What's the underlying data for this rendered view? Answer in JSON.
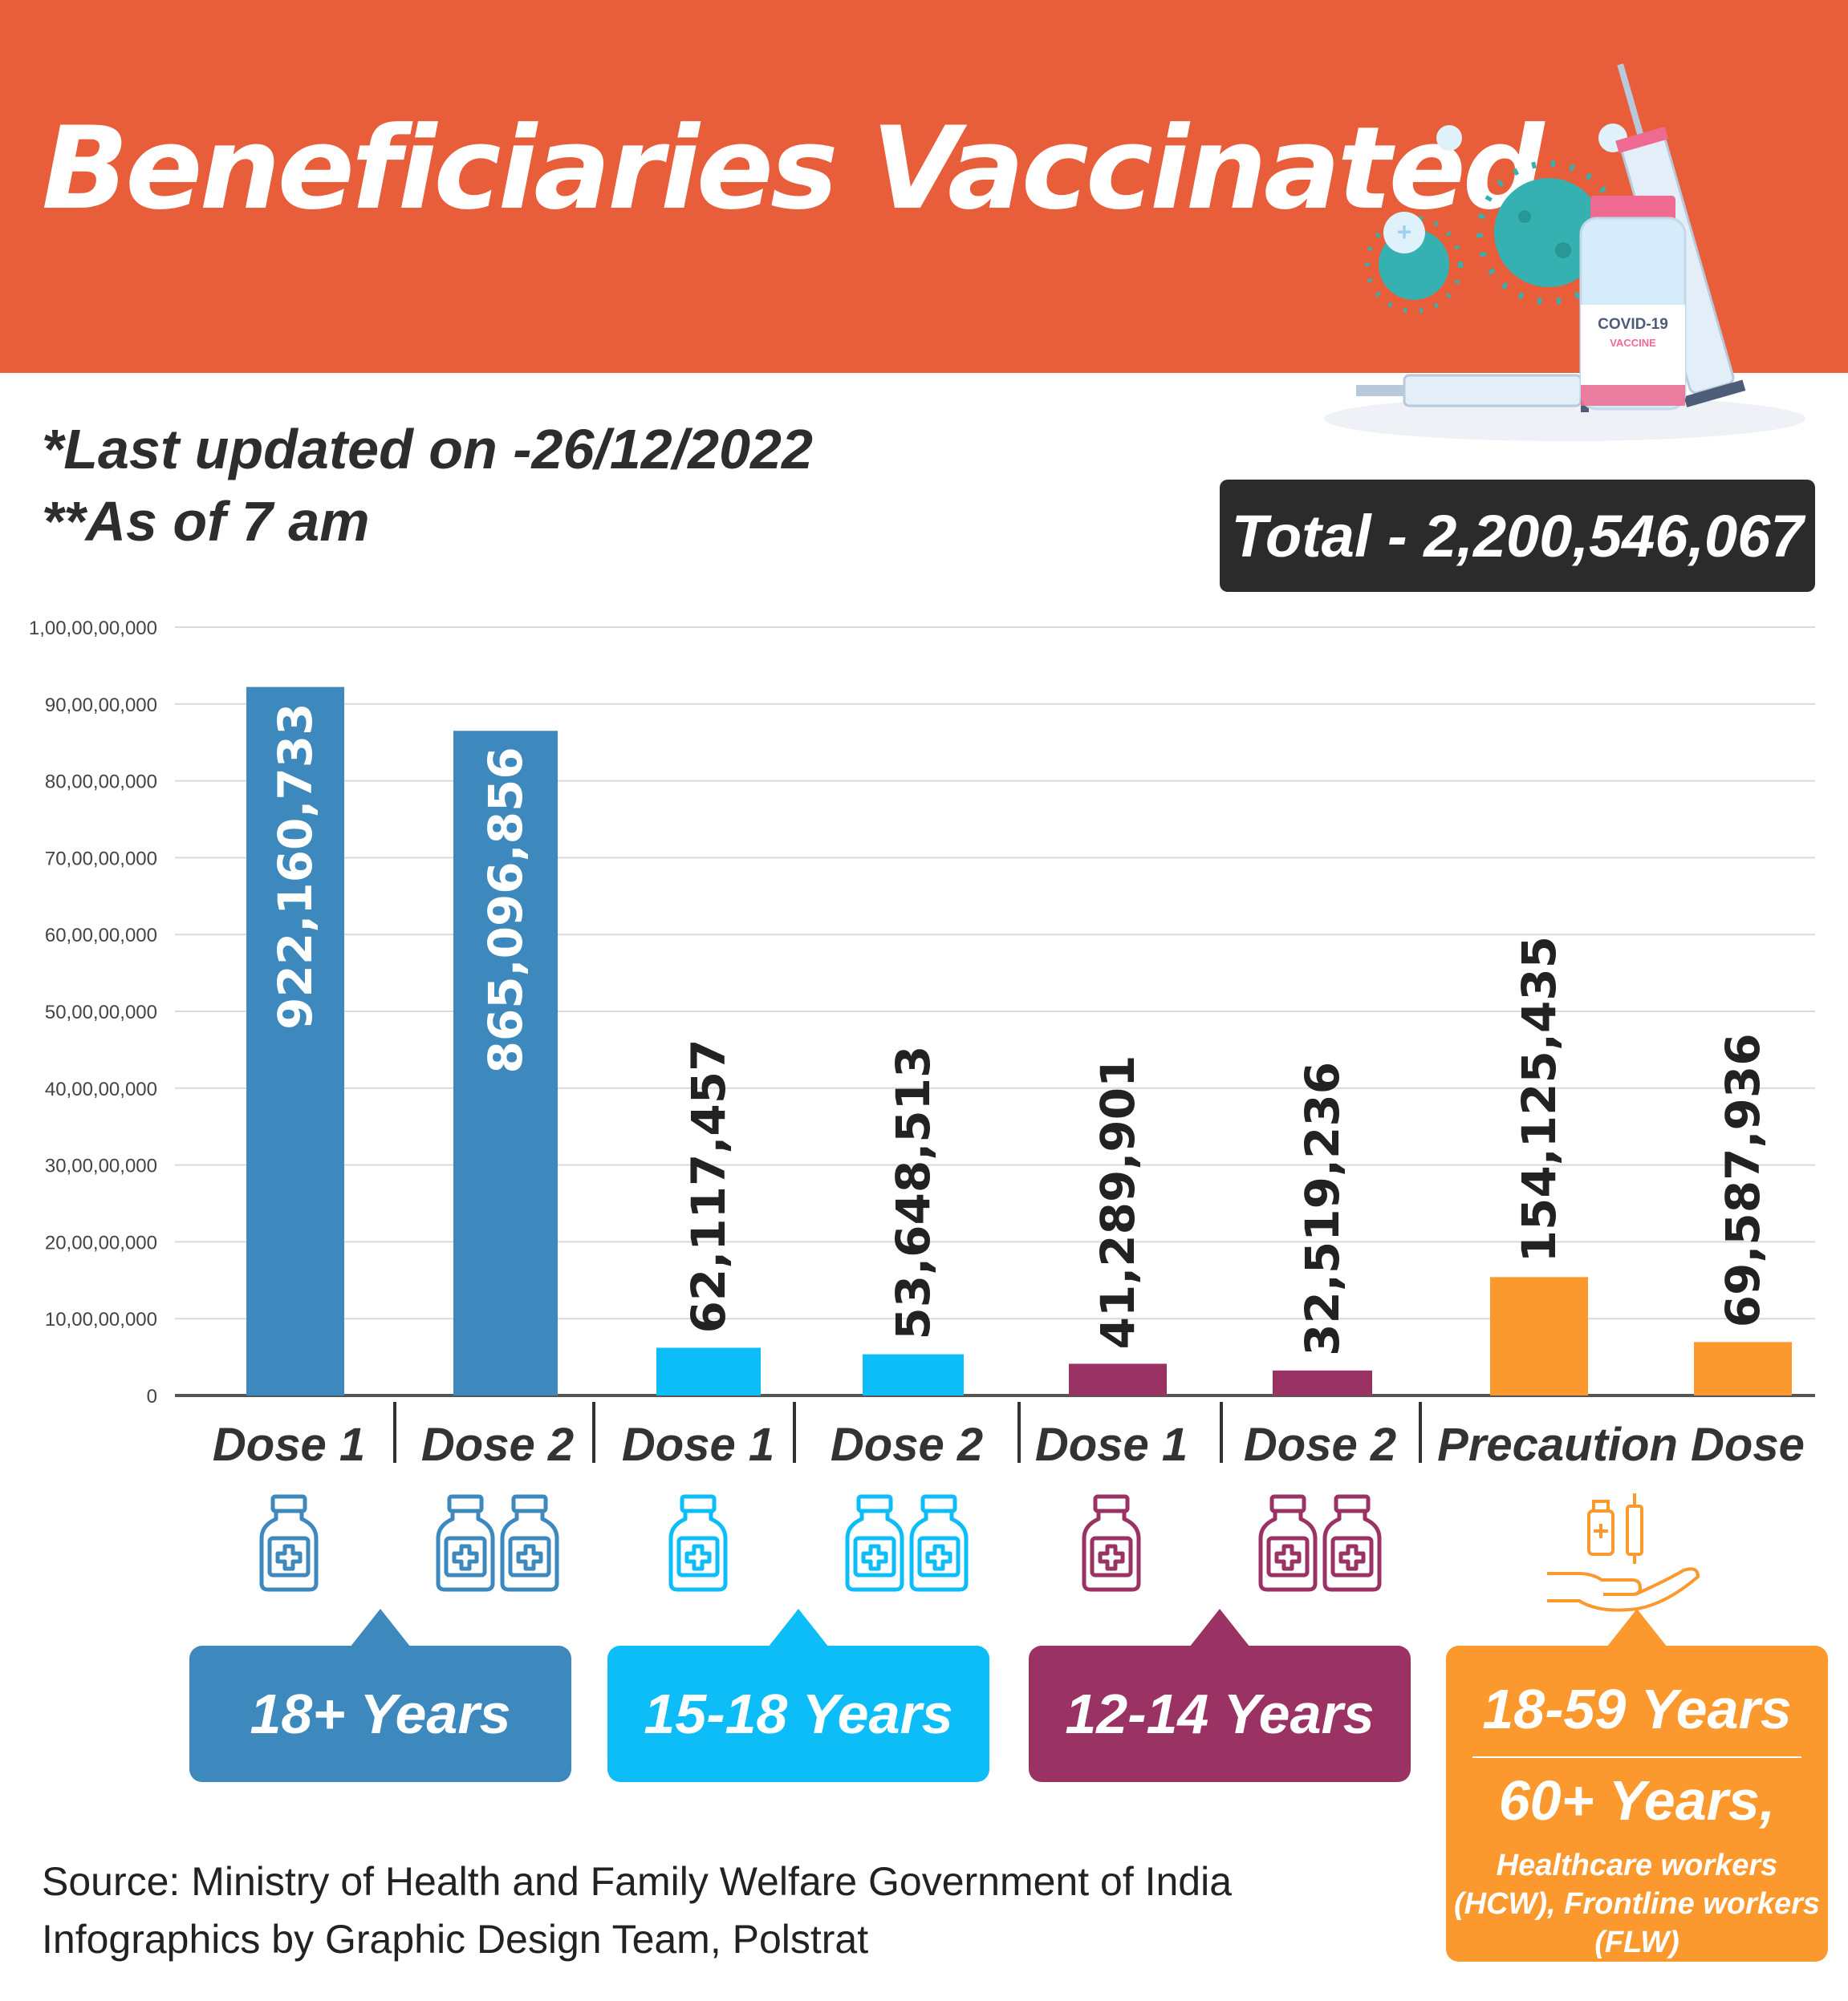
{
  "header": {
    "title": "Beneficiaries Vaccinated",
    "illustration": {
      "bottle_label_line1": "COVID-19",
      "bottle_label_line2": "VACCINE"
    }
  },
  "meta": {
    "last_updated": "*Last updated on -26/12/2022",
    "as_of": "**As of 7 am",
    "total": "Total - 2,200,546,067"
  },
  "chart_data": {
    "type": "bar",
    "title": "",
    "xlabel": "",
    "ylabel": "",
    "ylim": [
      0,
      1000000000
    ],
    "ytick_values": [
      0,
      100000000,
      200000000,
      300000000,
      400000000,
      500000000,
      600000000,
      700000000,
      800000000,
      900000000,
      1000000000
    ],
    "ytick_labels": [
      "0",
      "10,00,00,000",
      "20,00,00,000",
      "30,00,00,000",
      "40,00,00,000",
      "50,00,00,000",
      "60,00,00,000",
      "70,00,00,000",
      "80,00,00,000",
      "90,00,00,000",
      "1,00,00,00,000"
    ],
    "grid": true,
    "categories": [
      "Dose 1",
      "Dose 2",
      "Dose 1",
      "Dose 2",
      "Dose 1",
      "Dose 2",
      "Precaution Dose",
      ""
    ],
    "values": [
      922160733,
      865096856,
      62117457,
      53648513,
      41289901,
      32519236,
      154125435,
      69587936
    ],
    "value_labels": [
      "922,160,733",
      "865,096,856",
      "62,117,457",
      "53,648,513",
      "41,289,901",
      "32,519,236",
      "154,125,435",
      "69,587,936"
    ],
    "bar_colors": [
      "#3d89bd",
      "#3d89bd",
      "#0dbdf8",
      "#0dbdf8",
      "#9a3363",
      "#9a3363",
      "#fb992f",
      "#fb992f"
    ],
    "icon_names": [
      "vial-icon",
      "two-vials-icon",
      "vial-icon",
      "two-vials-icon",
      "vial-icon",
      "two-vials-icon",
      "hand-vaccine-icon"
    ],
    "groups": [
      {
        "label": "18+ Years",
        "color": "#3d89bd"
      },
      {
        "label": "15-18 Years",
        "color": "#0dbdf8"
      },
      {
        "label": "12-14 Years",
        "color": "#9a3363"
      },
      {
        "label": "18-59 Years",
        "sub1": "60+ Years,",
        "sub2": "Healthcare workers (HCW), Frontline workers (FLW)",
        "color": "#fb992f"
      }
    ]
  },
  "source": {
    "line1": "Source: Ministry of Health and Family Welfare Government of India",
    "line2": "Infographics by Graphic Design Team, Polstrat"
  }
}
